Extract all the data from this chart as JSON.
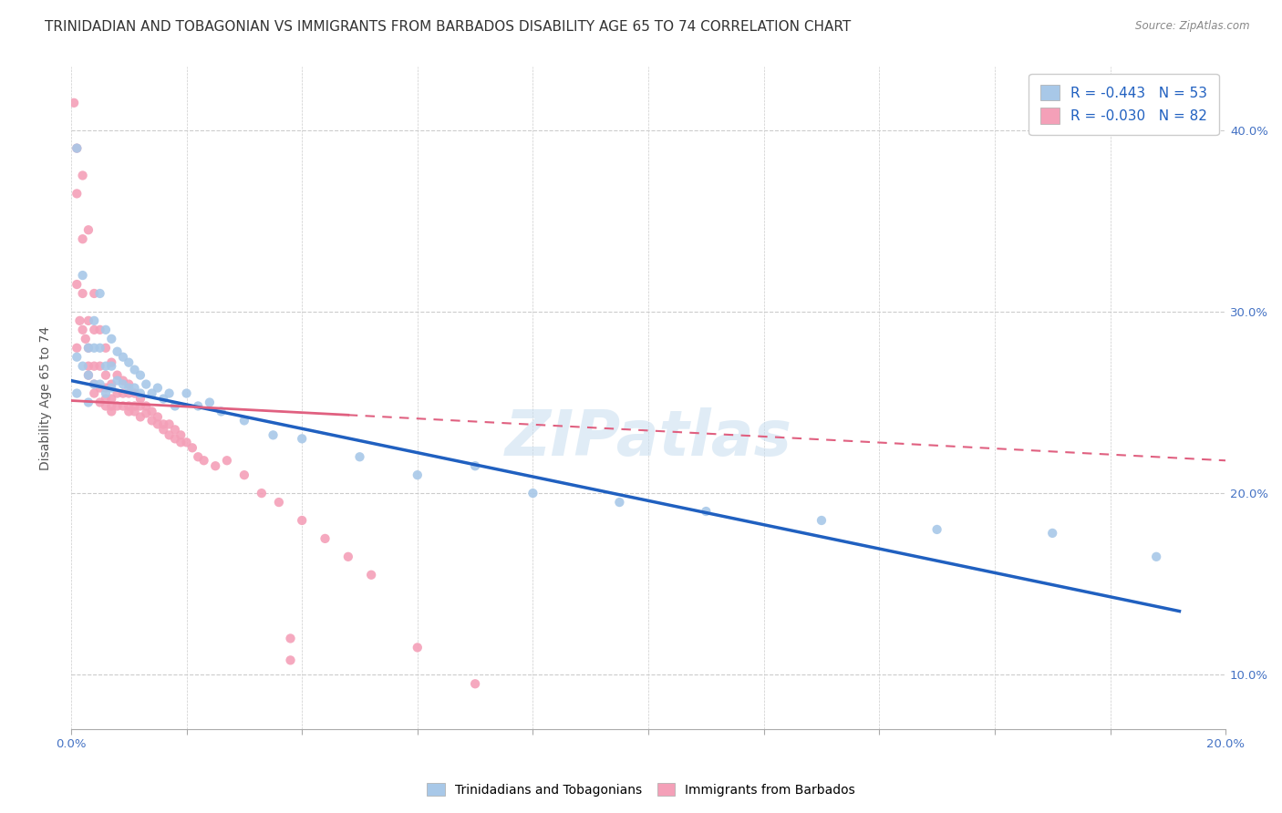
{
  "title": "TRINIDADIAN AND TOBAGONIAN VS IMMIGRANTS FROM BARBADOS DISABILITY AGE 65 TO 74 CORRELATION CHART",
  "source": "Source: ZipAtlas.com",
  "xlabel": "",
  "ylabel": "Disability Age 65 to 74",
  "xlim": [
    0.0,
    0.2
  ],
  "ylim": [
    0.07,
    0.435
  ],
  "xticks": [
    0.0,
    0.02,
    0.04,
    0.06,
    0.08,
    0.1,
    0.12,
    0.14,
    0.16,
    0.18,
    0.2
  ],
  "yticks": [
    0.1,
    0.2,
    0.3,
    0.4
  ],
  "xtick_labels": [
    "0.0%",
    "",
    "",
    "",
    "",
    "",
    "",
    "",
    "",
    "",
    "20.0%"
  ],
  "ytick_labels": [
    "10.0%",
    "20.0%",
    "30.0%",
    "40.0%"
  ],
  "legend_r_blue": "-0.443",
  "legend_n_blue": "53",
  "legend_r_pink": "-0.030",
  "legend_n_pink": "82",
  "blue_color": "#a8c8e8",
  "pink_color": "#f4a0b8",
  "blue_line_color": "#2060c0",
  "pink_line_color": "#e06080",
  "title_fontsize": 11,
  "axis_label_fontsize": 10,
  "tick_fontsize": 9.5,
  "watermark": "ZIPatlas",
  "blue_scatter_x": [
    0.001,
    0.001,
    0.001,
    0.002,
    0.002,
    0.003,
    0.003,
    0.003,
    0.004,
    0.004,
    0.004,
    0.005,
    0.005,
    0.005,
    0.006,
    0.006,
    0.006,
    0.007,
    0.007,
    0.007,
    0.008,
    0.008,
    0.009,
    0.009,
    0.01,
    0.01,
    0.011,
    0.011,
    0.012,
    0.012,
    0.013,
    0.014,
    0.015,
    0.016,
    0.017,
    0.018,
    0.02,
    0.022,
    0.024,
    0.026,
    0.03,
    0.035,
    0.04,
    0.05,
    0.06,
    0.07,
    0.08,
    0.095,
    0.11,
    0.13,
    0.15,
    0.17,
    0.188
  ],
  "blue_scatter_y": [
    0.39,
    0.275,
    0.255,
    0.32,
    0.27,
    0.28,
    0.265,
    0.25,
    0.295,
    0.28,
    0.26,
    0.31,
    0.28,
    0.26,
    0.29,
    0.27,
    0.255,
    0.285,
    0.27,
    0.258,
    0.278,
    0.262,
    0.275,
    0.26,
    0.272,
    0.258,
    0.268,
    0.258,
    0.265,
    0.255,
    0.26,
    0.255,
    0.258,
    0.252,
    0.255,
    0.248,
    0.255,
    0.248,
    0.25,
    0.245,
    0.24,
    0.232,
    0.23,
    0.22,
    0.21,
    0.215,
    0.2,
    0.195,
    0.19,
    0.185,
    0.18,
    0.178,
    0.165
  ],
  "pink_scatter_x": [
    0.0005,
    0.001,
    0.001,
    0.001,
    0.001,
    0.0015,
    0.002,
    0.002,
    0.002,
    0.002,
    0.0025,
    0.003,
    0.003,
    0.003,
    0.003,
    0.003,
    0.004,
    0.004,
    0.004,
    0.004,
    0.004,
    0.005,
    0.005,
    0.005,
    0.005,
    0.006,
    0.006,
    0.006,
    0.006,
    0.006,
    0.007,
    0.007,
    0.007,
    0.007,
    0.007,
    0.008,
    0.008,
    0.008,
    0.009,
    0.009,
    0.009,
    0.01,
    0.01,
    0.01,
    0.01,
    0.011,
    0.011,
    0.011,
    0.012,
    0.012,
    0.012,
    0.013,
    0.013,
    0.014,
    0.014,
    0.015,
    0.015,
    0.016,
    0.016,
    0.017,
    0.017,
    0.018,
    0.018,
    0.019,
    0.019,
    0.02,
    0.021,
    0.022,
    0.023,
    0.025,
    0.027,
    0.03,
    0.033,
    0.036,
    0.04,
    0.044,
    0.048,
    0.052,
    0.06,
    0.07,
    0.038,
    0.038
  ],
  "pink_scatter_y": [
    0.415,
    0.39,
    0.365,
    0.315,
    0.28,
    0.295,
    0.375,
    0.34,
    0.31,
    0.29,
    0.285,
    0.345,
    0.295,
    0.28,
    0.27,
    0.265,
    0.31,
    0.29,
    0.27,
    0.26,
    0.255,
    0.29,
    0.27,
    0.258,
    0.25,
    0.28,
    0.265,
    0.258,
    0.252,
    0.248,
    0.272,
    0.26,
    0.252,
    0.248,
    0.245,
    0.265,
    0.255,
    0.248,
    0.262,
    0.255,
    0.248,
    0.26,
    0.255,
    0.248,
    0.245,
    0.255,
    0.248,
    0.245,
    0.252,
    0.248,
    0.242,
    0.248,
    0.244,
    0.245,
    0.24,
    0.242,
    0.238,
    0.238,
    0.235,
    0.238,
    0.232,
    0.235,
    0.23,
    0.232,
    0.228,
    0.228,
    0.225,
    0.22,
    0.218,
    0.215,
    0.218,
    0.21,
    0.2,
    0.195,
    0.185,
    0.175,
    0.165,
    0.155,
    0.115,
    0.095,
    0.12,
    0.108
  ]
}
